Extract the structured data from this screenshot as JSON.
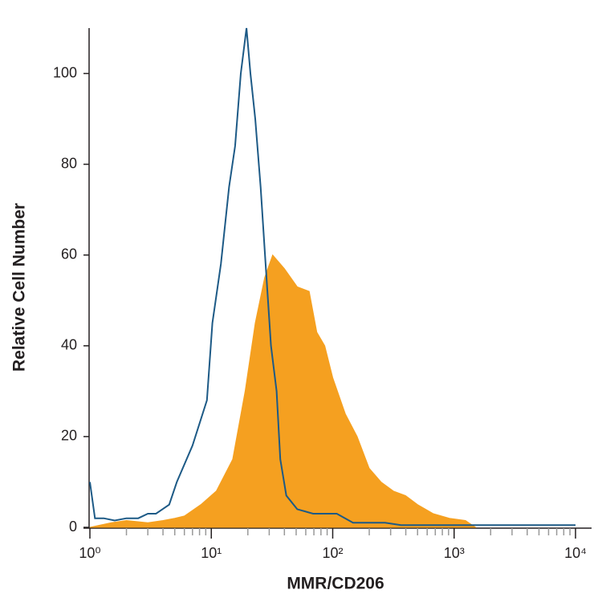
{
  "chart_data": {
    "type": "line",
    "xlabel": "MMR/CD206",
    "ylabel": "Relative Cell Number",
    "xscale": "log",
    "xlim": [
      1,
      10000
    ],
    "ylim": [
      0,
      110
    ],
    "xticks": [
      {
        "value": 1,
        "label": "10⁰"
      },
      {
        "value": 10,
        "label": "10¹"
      },
      {
        "value": 100,
        "label": "10²"
      },
      {
        "value": 1000,
        "label": "10³"
      },
      {
        "value": 10000,
        "label": "10⁴"
      }
    ],
    "xminorticks": [
      2,
      3,
      4,
      5,
      6,
      7,
      8,
      9,
      20,
      30,
      40,
      50,
      60,
      70,
      80,
      90,
      200,
      300,
      400,
      500,
      600,
      700,
      800,
      900,
      2000,
      3000,
      4000,
      5000,
      6000,
      7000,
      8000,
      9000
    ],
    "yticks": [
      0,
      20,
      40,
      60,
      80,
      100
    ],
    "series": [
      {
        "color": "#f5a020",
        "fill": true,
        "x": [
          1,
          1.5,
          2,
          3,
          4,
          5,
          6,
          8.2,
          11,
          15,
          19,
          23,
          27.5,
          32,
          40,
          51,
          64,
          74,
          86,
          100,
          127,
          159,
          200,
          250,
          316,
          398,
          500,
          675,
          915,
          1240,
          1500
        ],
        "values": [
          0,
          1,
          1.5,
          1,
          1.5,
          2,
          2.5,
          5,
          8,
          15,
          30,
          45,
          55,
          60,
          57,
          53,
          52,
          43,
          40,
          33,
          25,
          20,
          13,
          10,
          8,
          7,
          5,
          3,
          2,
          1.5,
          0
        ]
      },
      {
        "color": "#1d5a86",
        "fill": false,
        "x": [
          1,
          1.1,
          1.3,
          1.6,
          2,
          2.5,
          3,
          3.5,
          4.5,
          5.2,
          7,
          9.2,
          10.2,
          12,
          14,
          15.7,
          17.5,
          19.5,
          21,
          23,
          25.5,
          28,
          31,
          34.5,
          37,
          41.5,
          51,
          69,
          108,
          147,
          270,
          366,
          10000
        ],
        "values": [
          10,
          2,
          2,
          1.5,
          2,
          2,
          3,
          3,
          5,
          10,
          18,
          28,
          45,
          58,
          75,
          84,
          100,
          110,
          100,
          90,
          75,
          58,
          40,
          30,
          15,
          7,
          4,
          3,
          3,
          1,
          1,
          0.5,
          0.5
        ]
      }
    ]
  }
}
